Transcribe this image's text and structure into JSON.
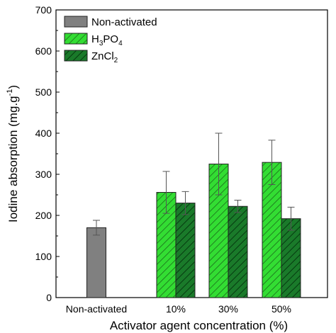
{
  "chart_data": {
    "type": "bar",
    "title": "",
    "xlabel": "Activator agent concentration (%)",
    "ylabel": "Iodine absorption (mg.g",
    "ylabel_sup": "-1",
    "ylabel_close": ")",
    "ylim": [
      0,
      700
    ],
    "yticks": [
      0,
      100,
      200,
      300,
      400,
      500,
      600,
      700
    ],
    "categories": [
      "Non-activated",
      "10%",
      "30%",
      "50%"
    ],
    "legend_position": "top-left",
    "series": [
      {
        "name": "Non-activated",
        "legend_parts": [
          {
            "t": "Non-activated",
            "sub": false
          }
        ],
        "color": "#808080",
        "hatch": "none",
        "values": [
          170,
          null,
          null,
          null
        ],
        "errors": [
          18,
          null,
          null,
          null
        ]
      },
      {
        "name": "H3PO4",
        "legend_parts": [
          {
            "t": "H",
            "sub": false
          },
          {
            "t": "3",
            "sub": true
          },
          {
            "t": "PO",
            "sub": false
          },
          {
            "t": "4",
            "sub": true
          }
        ],
        "color": "#33dd33",
        "hatch": "light",
        "values": [
          null,
          256,
          325,
          329
        ],
        "errors": [
          null,
          51,
          75,
          54
        ]
      },
      {
        "name": "ZnCl2",
        "legend_parts": [
          {
            "t": "ZnCl",
            "sub": false
          },
          {
            "t": "2",
            "sub": true
          }
        ],
        "color": "#1a7a2a",
        "hatch": "dark",
        "values": [
          null,
          230,
          222,
          192
        ],
        "errors": [
          null,
          28,
          15,
          28
        ]
      }
    ]
  }
}
